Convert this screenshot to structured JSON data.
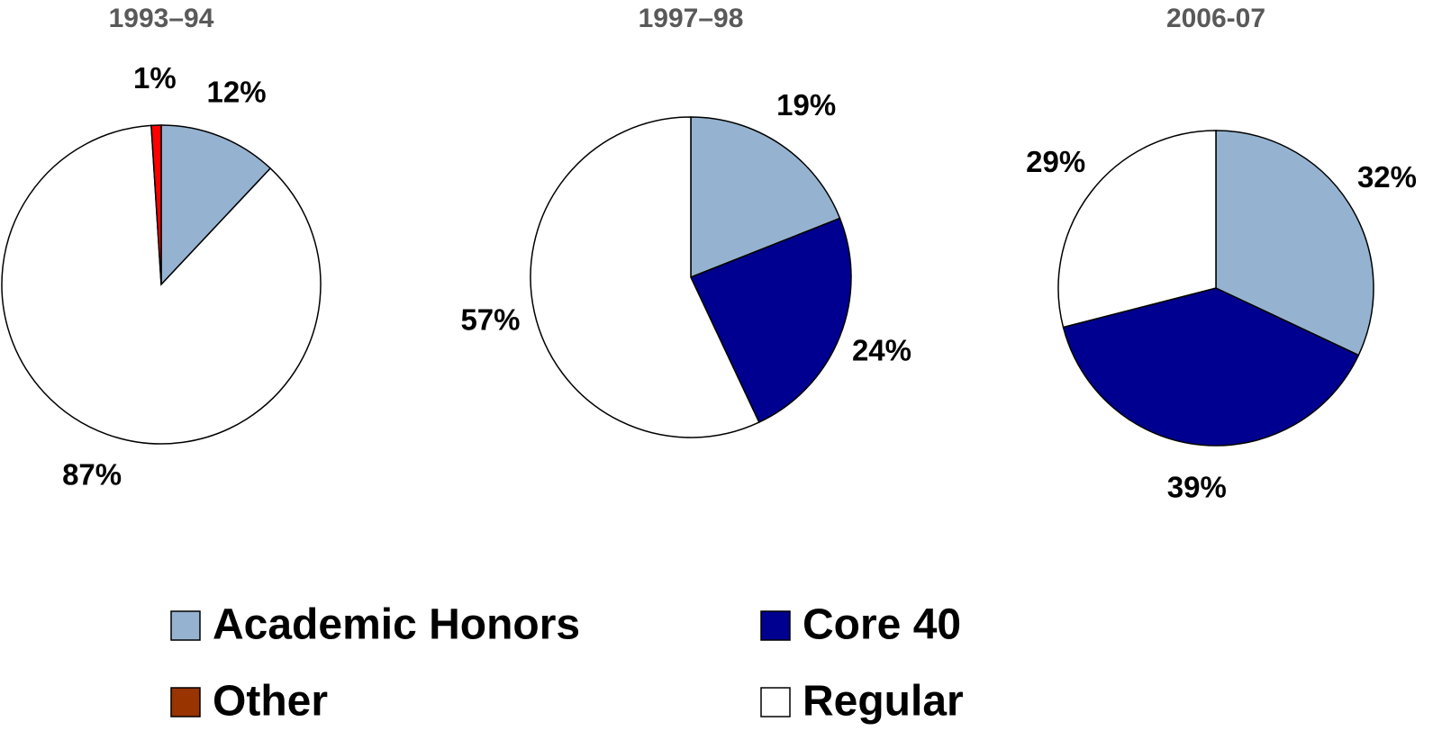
{
  "chart_data": [
    {
      "type": "pie",
      "title": "1993–94",
      "categories": [
        "Academic Honors",
        "Regular",
        "Other"
      ],
      "values": [
        12,
        87,
        1
      ],
      "value_labels": [
        "12%",
        "87%",
        "1%"
      ],
      "colors": [
        "#95b3d0",
        "#ffffff",
        "#ff0000"
      ]
    },
    {
      "type": "pie",
      "title": "1997–98",
      "categories": [
        "Academic Honors",
        "Core 40",
        "Regular"
      ],
      "values": [
        19,
        24,
        57
      ],
      "value_labels": [
        "19%",
        "24%",
        "57%"
      ],
      "colors": [
        "#95b3d0",
        "#000090",
        "#ffffff"
      ]
    },
    {
      "type": "pie",
      "title": "2006-07",
      "categories": [
        "Academic Honors",
        "Core 40",
        "Regular"
      ],
      "values": [
        32,
        39,
        29
      ],
      "value_labels": [
        "32%",
        "39%",
        "29%"
      ],
      "colors": [
        "#95b3d0",
        "#000090",
        "#ffffff"
      ]
    }
  ],
  "legend": [
    {
      "name": "Academic Honors",
      "color": "#95b3d0"
    },
    {
      "name": "Core 40",
      "color": "#000090"
    },
    {
      "name": "Other",
      "color": "#993300"
    },
    {
      "name": "Regular",
      "color": "#ffffff"
    }
  ]
}
